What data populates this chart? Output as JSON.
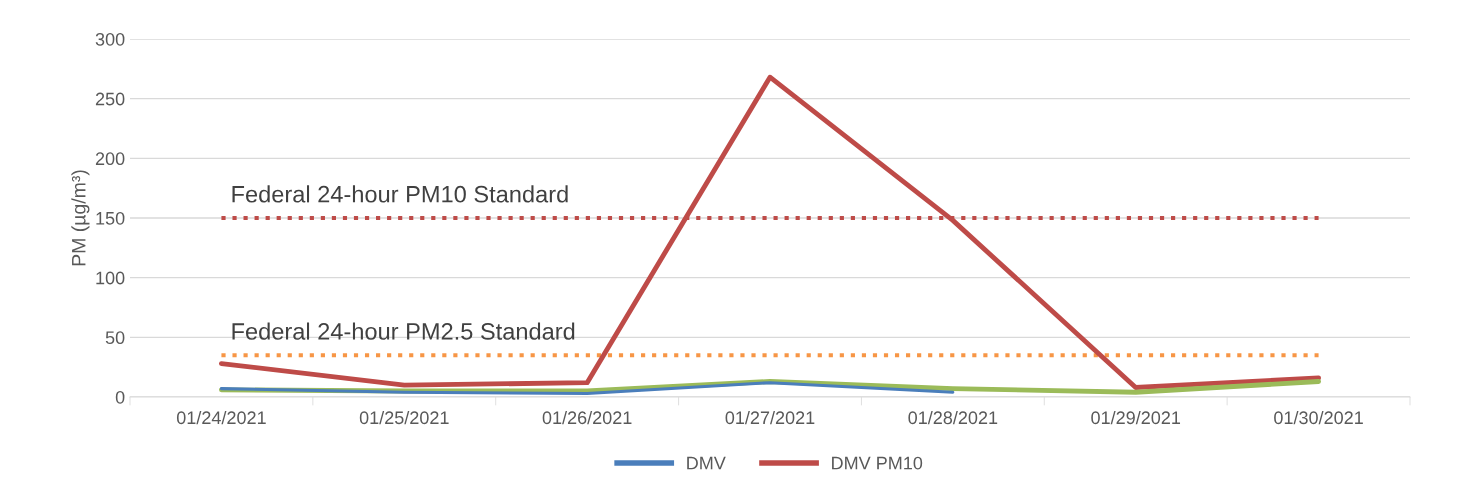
{
  "chart_data": {
    "type": "line",
    "ylabel": "PM (µg/m³)",
    "categories": [
      "01/24/2021",
      "01/25/2021",
      "01/26/2021",
      "01/27/2021",
      "01/28/2021",
      "01/29/2021",
      "01/30/2021"
    ],
    "series": [
      {
        "name": "DMV",
        "color": "#4a7ebb",
        "values": [
          7,
          4,
          3,
          12,
          4,
          null,
          null
        ]
      },
      {
        "name": "DMV PM10",
        "color": "#be4b48",
        "values": [
          28,
          10,
          12,
          268,
          148,
          8,
          16
        ]
      },
      {
        "color": "#9bbb59",
        "values": [
          6,
          5,
          5,
          13,
          7,
          4,
          13
        ]
      }
    ],
    "ylim": [
      0,
      300
    ],
    "yticks": [
      0,
      50,
      100,
      150,
      200,
      250,
      300
    ],
    "grid": "y",
    "legend": "bottom",
    "ref_lines": [
      {
        "axis": "y",
        "value": 150,
        "label": "Federal 24-hour PM10 Standard",
        "color": "#be4b48",
        "line_style": "dotted"
      },
      {
        "axis": "y",
        "value": 35,
        "label": "Federal 24-hour PM2.5 Standard",
        "color": "#f79646",
        "line_style": "dotted"
      }
    ]
  }
}
